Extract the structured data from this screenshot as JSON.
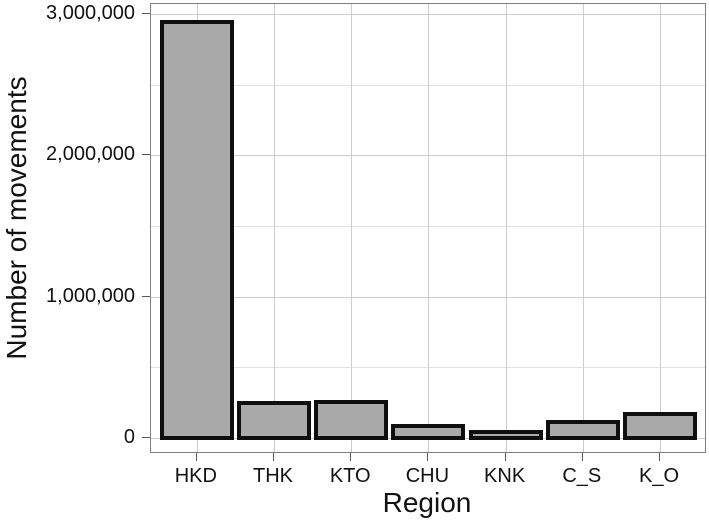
{
  "chart_data": {
    "type": "bar",
    "title": "",
    "xlabel": "Region",
    "ylabel": "Number of movements",
    "categories": [
      "HKD",
      "THK",
      "KTO",
      "CHU",
      "KNK",
      "C_S",
      "K_O"
    ],
    "values": [
      2940000,
      248000,
      252000,
      80000,
      40000,
      110000,
      165000
    ],
    "ylim": [
      0,
      3000000
    ],
    "yticks": [
      {
        "value": 0,
        "label": "0"
      },
      {
        "value": 1000000,
        "label": "1,000,000"
      },
      {
        "value": 2000000,
        "label": "2,000,000"
      },
      {
        "value": 3000000,
        "label": "3,000,000"
      }
    ],
    "y_minor_gridlines": [
      500000,
      1500000,
      2500000
    ],
    "grid": true,
    "legend": false,
    "bar_fill": "#a9a9a9",
    "bar_stroke": "#0f0f0f"
  },
  "colors": {
    "background": "#ffffff",
    "panel_border": "#808080",
    "grid_major": "#cdcdcd",
    "grid_minor": "#e3e3e3",
    "tick": "#595959",
    "text": "#121212"
  }
}
